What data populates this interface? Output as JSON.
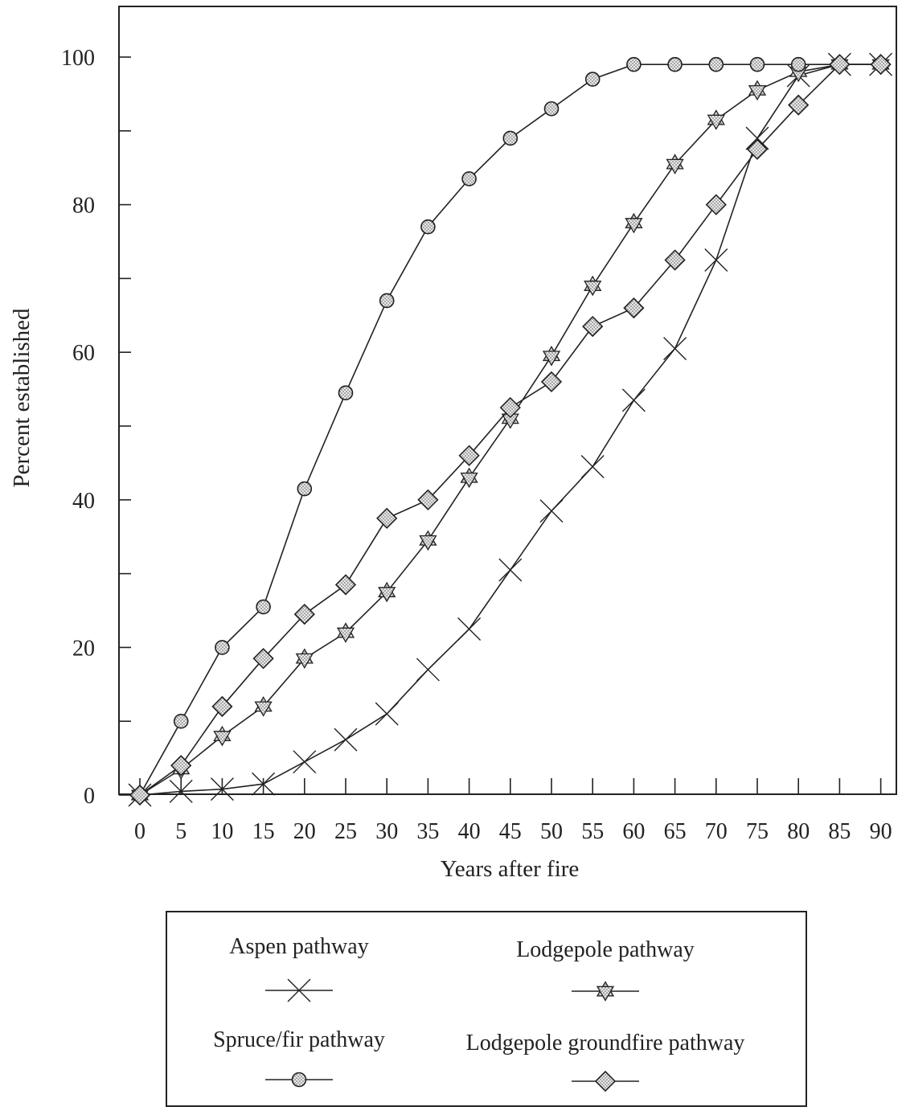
{
  "chart_data": {
    "type": "line",
    "title": "",
    "xlabel": "Years after fire",
    "ylabel": "Percent established",
    "xlim": [
      0,
      90
    ],
    "ylim": [
      0,
      100
    ],
    "x_ticks": [
      0,
      5,
      10,
      15,
      20,
      25,
      30,
      35,
      40,
      45,
      50,
      55,
      60,
      65,
      70,
      75,
      80,
      85,
      90
    ],
    "y_ticks": [
      0,
      20,
      40,
      60,
      80,
      100
    ],
    "grid": false,
    "legend_position": "bottom",
    "x": [
      0,
      5,
      10,
      15,
      20,
      25,
      30,
      35,
      40,
      45,
      50,
      55,
      60,
      65,
      70,
      75,
      80,
      85,
      90
    ],
    "series": [
      {
        "name": "Aspen pathway",
        "marker": "x",
        "values": [
          0,
          0.5,
          0.8,
          1.5,
          4.5,
          7.5,
          11,
          17,
          22.5,
          30.5,
          38.5,
          44.5,
          53.5,
          60.5,
          72.5,
          89,
          97.5,
          99,
          99
        ]
      },
      {
        "name": "Lodgepole pathway",
        "marker": "star",
        "values": [
          0,
          3.5,
          8,
          12,
          18.5,
          22,
          27.5,
          34.5,
          43,
          51,
          59.5,
          69,
          77.5,
          85.5,
          91.5,
          95.5,
          98,
          99,
          99
        ]
      },
      {
        "name": "Spruce/fir pathway",
        "marker": "circle",
        "values": [
          0,
          10,
          20,
          25.5,
          41.5,
          54.5,
          67,
          77,
          83.5,
          89,
          93,
          97,
          99,
          99,
          99,
          99,
          99,
          99,
          99
        ]
      },
      {
        "name": "Lodgepole groundfire pathway",
        "marker": "diamond",
        "values": [
          0,
          4,
          12,
          18.5,
          24.5,
          28.5,
          37.5,
          40,
          46,
          52.5,
          56,
          63.5,
          66,
          72.5,
          80,
          87.5,
          93.5,
          99,
          99
        ]
      }
    ]
  }
}
